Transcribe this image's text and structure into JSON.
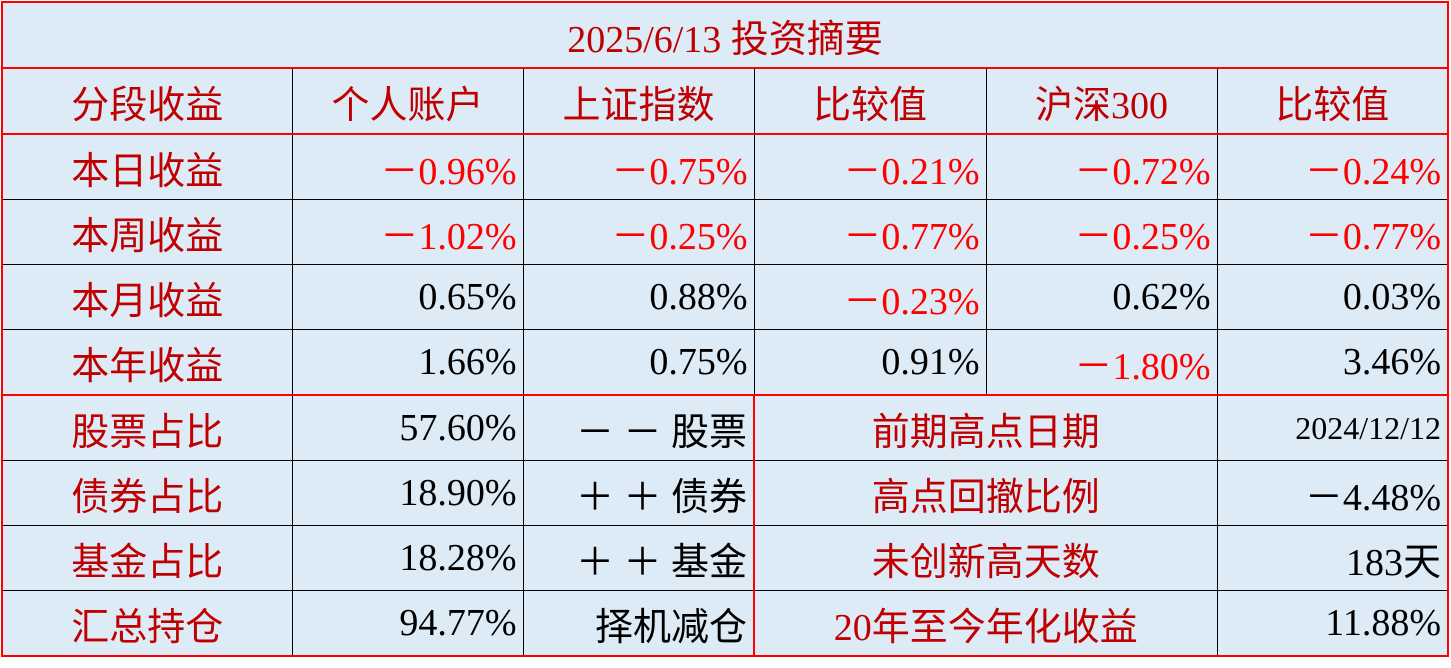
{
  "title": "2025/6/13 投资摘要",
  "colors": {
    "background": "#ddebf7",
    "label": "#c00000",
    "negative": "#ff0000",
    "border": "#ff0000"
  },
  "header": [
    "分段收益",
    "个人账户",
    "上证指数",
    "比较值",
    "沪深300",
    "比较值"
  ],
  "returns": [
    {
      "label": "本日收益",
      "values": [
        "-0.96%",
        "-0.75%",
        "-0.21%",
        "-0.72%",
        "-0.24%"
      ]
    },
    {
      "label": "本周收益",
      "values": [
        "-1.02%",
        "-0.25%",
        "-0.77%",
        "-0.25%",
        "-0.77%"
      ]
    },
    {
      "label": "本月收益",
      "values": [
        "0.65%",
        "0.88%",
        "-0.23%",
        "0.62%",
        "0.03%"
      ]
    },
    {
      "label": "本年收益",
      "values": [
        "1.66%",
        "0.75%",
        "0.91%",
        "-1.80%",
        "3.46%"
      ]
    }
  ],
  "allocation": [
    {
      "label": "股票占比",
      "value": "57.60%",
      "note": "－ － 股票",
      "metric": "前期高点日期",
      "metric_value": "2024/12/12"
    },
    {
      "label": "债券占比",
      "value": "18.90%",
      "note": "＋ ＋ 债券",
      "metric": "高点回撤比例",
      "metric_value": "-4.48%"
    },
    {
      "label": "基金占比",
      "value": "18.28%",
      "note": "＋ ＋ 基金",
      "metric": "未创新高天数",
      "metric_value": "183天"
    },
    {
      "label": "汇总持仓",
      "value": "94.77%",
      "note": "择机减仓",
      "metric": "20年至今年化收益",
      "metric_value": "11.88%"
    }
  ]
}
